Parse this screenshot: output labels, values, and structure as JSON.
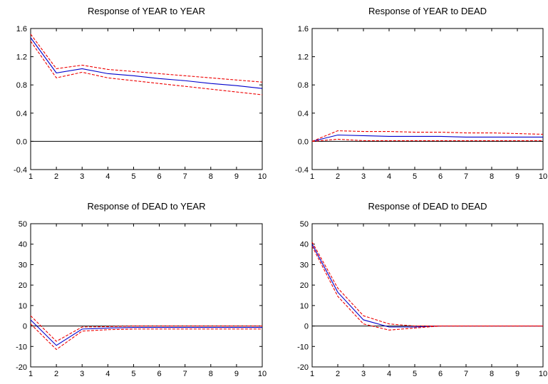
{
  "chart_data": [
    {
      "type": "line",
      "title": "Response of YEAR to YEAR",
      "xlabel": "",
      "ylabel": "",
      "x": [
        1,
        2,
        3,
        4,
        5,
        6,
        7,
        8,
        9,
        10
      ],
      "xlim": [
        1,
        10
      ],
      "ylim": [
        -0.4,
        1.6
      ],
      "yticks": [
        -0.4,
        0.0,
        0.4,
        0.8,
        1.2,
        1.6
      ],
      "ytick_labels": [
        "-0.4",
        "0.0",
        "0.4",
        "0.8",
        "1.2",
        "1.6"
      ],
      "xtick_labels": [
        "1",
        "2",
        "3",
        "4",
        "5",
        "6",
        "7",
        "8",
        "9",
        "10"
      ],
      "zero_line": true,
      "grid": false,
      "series": [
        {
          "role": "response",
          "style": "solid",
          "color": "#0000cc",
          "values": [
            1.47,
            0.97,
            1.03,
            0.96,
            0.93,
            0.89,
            0.86,
            0.82,
            0.79,
            0.75
          ]
        },
        {
          "role": "upper-band",
          "style": "dashed",
          "color": "#ee0000",
          "values": [
            1.52,
            1.03,
            1.08,
            1.02,
            0.99,
            0.96,
            0.93,
            0.9,
            0.87,
            0.84
          ]
        },
        {
          "role": "lower-band",
          "style": "dashed",
          "color": "#ee0000",
          "values": [
            1.42,
            0.9,
            0.98,
            0.9,
            0.86,
            0.82,
            0.78,
            0.74,
            0.7,
            0.66
          ]
        }
      ]
    },
    {
      "type": "line",
      "title": "Response of YEAR to DEAD",
      "xlabel": "",
      "ylabel": "",
      "x": [
        1,
        2,
        3,
        4,
        5,
        6,
        7,
        8,
        9,
        10
      ],
      "xlim": [
        1,
        10
      ],
      "ylim": [
        -0.4,
        1.6
      ],
      "yticks": [
        -0.4,
        0.0,
        0.4,
        0.8,
        1.2,
        1.6
      ],
      "ytick_labels": [
        "-0.4",
        "0.0",
        "0.4",
        "0.8",
        "1.2",
        "1.6"
      ],
      "xtick_labels": [
        "1",
        "2",
        "3",
        "4",
        "5",
        "6",
        "7",
        "8",
        "9",
        "10"
      ],
      "zero_line": true,
      "grid": false,
      "series": [
        {
          "role": "response",
          "style": "solid",
          "color": "#0000cc",
          "values": [
            0.0,
            0.09,
            0.08,
            0.07,
            0.07,
            0.07,
            0.06,
            0.06,
            0.06,
            0.06
          ]
        },
        {
          "role": "upper-band",
          "style": "dashed",
          "color": "#ee0000",
          "values": [
            0.0,
            0.15,
            0.14,
            0.14,
            0.13,
            0.13,
            0.12,
            0.12,
            0.11,
            0.1
          ]
        },
        {
          "role": "lower-band",
          "style": "dashed",
          "color": "#ee0000",
          "values": [
            0.0,
            0.03,
            0.01,
            0.01,
            0.01,
            0.01,
            0.01,
            0.01,
            0.01,
            0.01
          ]
        }
      ]
    },
    {
      "type": "line",
      "title": "Response of DEAD to YEAR",
      "xlabel": "",
      "ylabel": "",
      "x": [
        1,
        2,
        3,
        4,
        5,
        6,
        7,
        8,
        9,
        10
      ],
      "xlim": [
        1,
        10
      ],
      "ylim": [
        -20,
        50
      ],
      "yticks": [
        -20,
        -10,
        0,
        10,
        20,
        30,
        40,
        50
      ],
      "ytick_labels": [
        "-20",
        "-10",
        "0",
        "10",
        "20",
        "30",
        "40",
        "50"
      ],
      "xtick_labels": [
        "1",
        "2",
        "3",
        "4",
        "5",
        "6",
        "7",
        "8",
        "9",
        "10"
      ],
      "zero_line": true,
      "grid": false,
      "series": [
        {
          "role": "response",
          "style": "solid",
          "color": "#0000cc",
          "values": [
            3.0,
            -9.5,
            -1.5,
            -1.0,
            -0.7,
            -0.7,
            -0.7,
            -0.7,
            -0.7,
            -0.7
          ]
        },
        {
          "role": "upper-band",
          "style": "dashed",
          "color": "#ee0000",
          "values": [
            5.0,
            -7.5,
            -0.5,
            -0.3,
            0.0,
            0.0,
            0.0,
            0.0,
            0.0,
            0.0
          ]
        },
        {
          "role": "lower-band",
          "style": "dashed",
          "color": "#ee0000",
          "values": [
            1.0,
            -11.5,
            -2.5,
            -1.8,
            -1.5,
            -1.5,
            -1.5,
            -1.5,
            -1.5,
            -1.5
          ]
        }
      ]
    },
    {
      "type": "line",
      "title": "Response of DEAD to DEAD",
      "xlabel": "",
      "ylabel": "",
      "x": [
        1,
        2,
        3,
        4,
        5,
        6,
        7,
        8,
        9,
        10
      ],
      "xlim": [
        1,
        10
      ],
      "ylim": [
        -20,
        50
      ],
      "yticks": [
        -20,
        -10,
        0,
        10,
        20,
        30,
        40,
        50
      ],
      "ytick_labels": [
        "-20",
        "-10",
        "0",
        "10",
        "20",
        "30",
        "40",
        "50"
      ],
      "xtick_labels": [
        "1",
        "2",
        "3",
        "4",
        "5",
        "6",
        "7",
        "8",
        "9",
        "10"
      ],
      "zero_line": true,
      "grid": false,
      "series": [
        {
          "role": "response",
          "style": "solid",
          "color": "#0000cc",
          "values": [
            40.0,
            16.5,
            3.0,
            -0.5,
            -0.5,
            0.0,
            0.0,
            0.0,
            0.0,
            0.0
          ]
        },
        {
          "role": "upper-band",
          "style": "dashed",
          "color": "#ee0000",
          "values": [
            41.0,
            18.5,
            5.0,
            1.0,
            0.0,
            0.0,
            0.0,
            0.0,
            0.0,
            0.0
          ]
        },
        {
          "role": "lower-band",
          "style": "dashed",
          "color": "#ee0000",
          "values": [
            39.0,
            14.5,
            1.0,
            -2.0,
            -1.0,
            0.0,
            0.0,
            0.0,
            0.0,
            0.0
          ]
        }
      ]
    }
  ]
}
